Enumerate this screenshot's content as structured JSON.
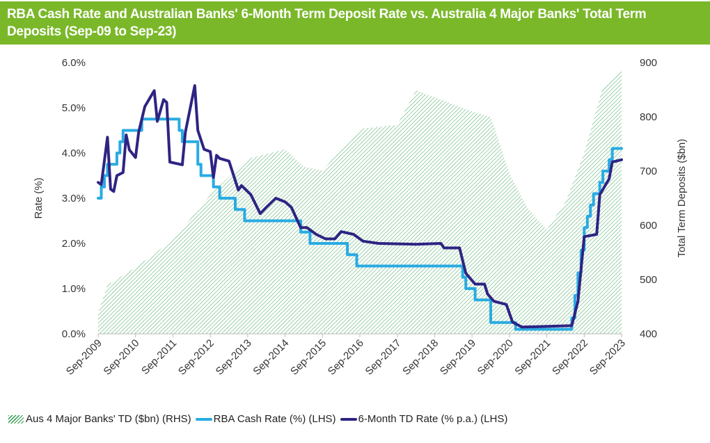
{
  "title": "RBA Cash Rate and Australian  Banks' 6-Month Term Deposit Rate vs. Australia 4 Major Banks' Total Term Deposits (Sep-09 to Sep-23)",
  "colors": {
    "title_bg": "#7ab829",
    "td_area": "#2a9a48",
    "rba": "#29abe2",
    "td_rate": "#2e2483"
  },
  "chart_data": {
    "type": "line",
    "title": "RBA Cash Rate and Australian  Banks' 6-Month Term Deposit Rate vs. Australia 4 Major Banks' Total Term Deposits (Sep-09 to Sep-23)",
    "ylabel": "Rate (%)",
    "y2label": "Total Term Deposits ($bn)",
    "ylim": [
      0,
      6
    ],
    "y2lim": [
      400,
      900
    ],
    "yticks": [
      "0.0%",
      "1.0%",
      "2.0%",
      "3.0%",
      "4.0%",
      "5.0%",
      "6.0%"
    ],
    "y2ticks": [
      "400",
      "500",
      "600",
      "700",
      "800",
      "900"
    ],
    "xticks": [
      "Sep-2009",
      "Sep-2010",
      "Sep-2011",
      "Sep-2012",
      "Sep-2013",
      "Sep-2014",
      "Sep-2015",
      "Sep-2016",
      "Sep-2017",
      "Sep-2018",
      "Sep-2019",
      "Sep-2020",
      "Sep-2021",
      "Sep-2022",
      "Sep-2023"
    ],
    "grid": false,
    "legend_position": "bottom",
    "series": [
      {
        "name": "Aus 4 Major Banks' TD ($bn) (RHS)",
        "type": "area",
        "axis": "right",
        "points": [
          [
            "2009-09",
            438
          ],
          [
            "2009-12",
            490
          ],
          [
            "2010-09",
            522
          ],
          [
            "2011-09",
            573
          ],
          [
            "2012-09",
            656
          ],
          [
            "2013-09",
            723
          ],
          [
            "2014-09",
            740
          ],
          [
            "2015-03",
            708
          ],
          [
            "2015-09",
            701
          ],
          [
            "2016-09",
            778
          ],
          [
            "2017-09",
            785
          ],
          [
            "2018-03",
            849
          ],
          [
            "2018-09",
            836
          ],
          [
            "2019-09",
            810
          ],
          [
            "2020-03",
            800
          ],
          [
            "2020-09",
            695
          ],
          [
            "2021-03",
            630
          ],
          [
            "2021-09",
            592
          ],
          [
            "2022-03",
            643
          ],
          [
            "2022-09",
            733
          ],
          [
            "2023-03",
            855
          ],
          [
            "2023-09",
            887
          ]
        ]
      },
      {
        "name": "RBA Cash Rate (%) (LHS)",
        "type": "step",
        "axis": "left",
        "points": [
          [
            "2009-09",
            3.0
          ],
          [
            "2009-10",
            3.25
          ],
          [
            "2009-11",
            3.5
          ],
          [
            "2009-12",
            3.75
          ],
          [
            "2010-03",
            4.0
          ],
          [
            "2010-04",
            4.25
          ],
          [
            "2010-05",
            4.5
          ],
          [
            "2010-11",
            4.75
          ],
          [
            "2011-11",
            4.5
          ],
          [
            "2011-12",
            4.25
          ],
          [
            "2012-05",
            3.75
          ],
          [
            "2012-06",
            3.5
          ],
          [
            "2012-10",
            3.25
          ],
          [
            "2012-12",
            3.0
          ],
          [
            "2013-05",
            2.75
          ],
          [
            "2013-08",
            2.5
          ],
          [
            "2015-02",
            2.25
          ],
          [
            "2015-05",
            2.0
          ],
          [
            "2016-05",
            1.75
          ],
          [
            "2016-08",
            1.5
          ],
          [
            "2019-06",
            1.25
          ],
          [
            "2019-07",
            1.0
          ],
          [
            "2019-10",
            0.75
          ],
          [
            "2020-03",
            0.25
          ],
          [
            "2020-11",
            0.1
          ],
          [
            "2022-05",
            0.35
          ],
          [
            "2022-06",
            0.85
          ],
          [
            "2022-07",
            1.35
          ],
          [
            "2022-08",
            1.85
          ],
          [
            "2022-09",
            2.35
          ],
          [
            "2022-10",
            2.6
          ],
          [
            "2022-11",
            2.85
          ],
          [
            "2022-12",
            3.1
          ],
          [
            "2023-02",
            3.35
          ],
          [
            "2023-03",
            3.6
          ],
          [
            "2023-05",
            3.85
          ],
          [
            "2023-06",
            4.1
          ],
          [
            "2023-09",
            4.1
          ]
        ]
      },
      {
        "name": "6-Month TD Rate (% p.a.) (LHS)",
        "type": "line",
        "axis": "left",
        "points": [
          [
            "2009-09",
            3.35
          ],
          [
            "2009-10",
            3.3
          ],
          [
            "2009-12",
            4.35
          ],
          [
            "2010-01",
            3.2
          ],
          [
            "2010-02",
            3.15
          ],
          [
            "2010-03",
            3.5
          ],
          [
            "2010-05",
            3.57
          ],
          [
            "2010-06",
            4.4
          ],
          [
            "2010-07",
            4.07
          ],
          [
            "2010-09",
            3.9
          ],
          [
            "2010-10",
            4.46
          ],
          [
            "2010-12",
            5.03
          ],
          [
            "2011-03",
            5.38
          ],
          [
            "2011-04",
            4.7
          ],
          [
            "2011-06",
            5.18
          ],
          [
            "2011-07",
            5.12
          ],
          [
            "2011-08",
            3.8
          ],
          [
            "2011-12",
            3.74
          ],
          [
            "2012-01",
            4.46
          ],
          [
            "2012-04",
            5.49
          ],
          [
            "2012-05",
            4.5
          ],
          [
            "2012-07",
            4.08
          ],
          [
            "2012-09",
            4.03
          ],
          [
            "2012-10",
            3.46
          ],
          [
            "2012-11",
            3.95
          ],
          [
            "2012-12",
            3.88
          ],
          [
            "2013-03",
            3.82
          ],
          [
            "2013-06",
            3.18
          ],
          [
            "2013-07",
            3.28
          ],
          [
            "2013-10",
            3.08
          ],
          [
            "2014-01",
            2.66
          ],
          [
            "2014-03",
            2.8
          ],
          [
            "2014-06",
            3.0
          ],
          [
            "2014-09",
            2.92
          ],
          [
            "2014-11",
            2.8
          ],
          [
            "2015-02",
            2.35
          ],
          [
            "2015-04",
            2.35
          ],
          [
            "2015-07",
            2.2
          ],
          [
            "2015-10",
            2.1
          ],
          [
            "2016-01",
            2.1
          ],
          [
            "2016-03",
            2.26
          ],
          [
            "2016-07",
            2.2
          ],
          [
            "2016-10",
            2.05
          ],
          [
            "2017-03",
            2.0
          ],
          [
            "2018-03",
            1.98
          ],
          [
            "2018-11",
            2.0
          ],
          [
            "2018-12",
            1.9
          ],
          [
            "2019-05",
            1.9
          ],
          [
            "2019-07",
            1.34
          ],
          [
            "2019-10",
            1.1
          ],
          [
            "2020-01",
            1.1
          ],
          [
            "2020-02",
            0.88
          ],
          [
            "2020-04",
            0.72
          ],
          [
            "2020-08",
            0.65
          ],
          [
            "2020-10",
            0.26
          ],
          [
            "2021-01",
            0.15
          ],
          [
            "2022-05",
            0.18
          ],
          [
            "2022-07",
            0.72
          ],
          [
            "2022-09",
            2.15
          ],
          [
            "2023-01",
            2.2
          ],
          [
            "2023-02",
            3.08
          ],
          [
            "2023-05",
            3.43
          ],
          [
            "2023-06",
            3.8
          ],
          [
            "2023-09",
            3.85
          ]
        ]
      }
    ]
  },
  "legend": [
    {
      "label": "Aus 4 Major Banks' TD ($bn) (RHS)"
    },
    {
      "label": "RBA Cash Rate (%) (LHS)"
    },
    {
      "label": "6-Month TD Rate (% p.a.) (LHS)"
    }
  ]
}
